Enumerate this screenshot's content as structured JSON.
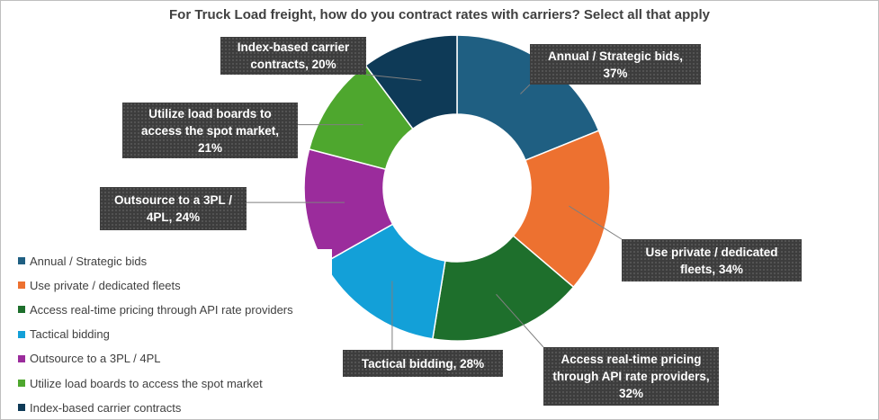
{
  "chart_data": {
    "type": "donut",
    "title": "For Truck Load freight, how do you contract rates with carriers? Select all that apply",
    "categories": [
      "Annual / Strategic bids",
      "Use private / dedicated fleets",
      "Access real-time pricing through API rate providers",
      "Tactical bidding",
      "Outsource to a 3PL / 4PL",
      "Utilize load boards to access the spot market",
      "Index-based carrier contracts"
    ],
    "values": [
      37,
      34,
      32,
      28,
      24,
      21,
      20
    ],
    "value_labels": [
      "Annual / Strategic bids, 37%",
      "Use private / dedicated fleets, 34%",
      "Access real-time pricing through API rate providers, 32%",
      "Tactical bidding, 28%",
      "Outsource to a 3PL / 4PL, 24%",
      "Utilize load boards to access the spot market, 21%",
      "Index-based carrier contracts, 20%"
    ],
    "colors": [
      "#1f5f82",
      "#ed7130",
      "#1e6f2c",
      "#13a0d8",
      "#9b2c9c",
      "#4ea72e",
      "#0e3a57"
    ],
    "legend": "left"
  }
}
